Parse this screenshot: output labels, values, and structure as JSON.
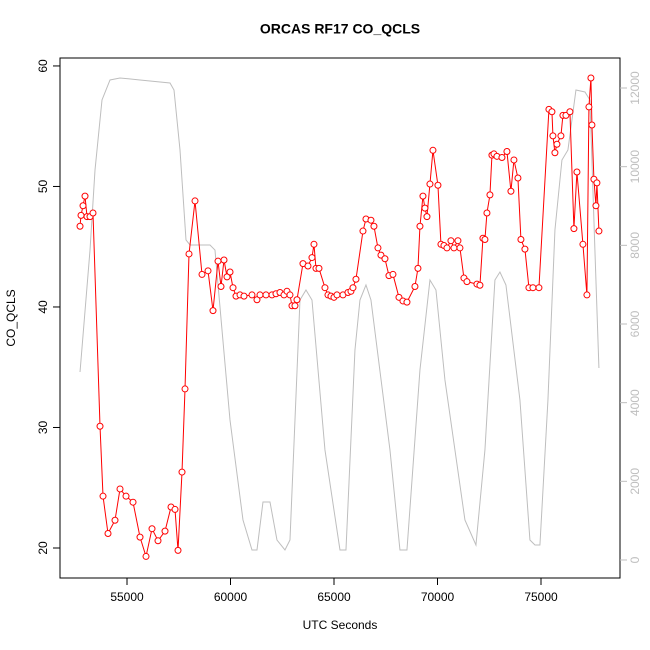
{
  "chart_data": {
    "type": "line",
    "title": "ORCAS RF17 CO_QCLS",
    "x_label": "UTC Seconds",
    "y_label": "CO_QCLS",
    "xlim": [
      51763,
      78816
    ],
    "xticks": [
      55000,
      60000,
      65000,
      70000,
      75000
    ],
    "ylim": [
      17.51,
      60.66
    ],
    "yticks": [
      20,
      30,
      40,
      50,
      60
    ],
    "y2lim": [
      -458,
      12763
    ],
    "y2ticks": [
      0,
      2000,
      4000,
      6000,
      8000,
      10000,
      12000
    ],
    "series": [
      {
        "color": "#ff0000",
        "markers": true,
        "x": [
          52730,
          52778,
          52875,
          52971,
          53068,
          53213,
          53357,
          53696,
          53841,
          54082,
          54420,
          54662,
          54952,
          55290,
          55628,
          55918,
          56208,
          56497,
          56836,
          57126,
          57319,
          57464,
          57657,
          57802,
          57995,
          58285,
          58623,
          58913,
          59154,
          59396,
          59541,
          59686,
          59831,
          59976,
          60121,
          60266,
          60459,
          60652,
          61038,
          61279,
          61424,
          61714,
          62004,
          62197,
          62390,
          62583,
          62728,
          62873,
          62970,
          63114,
          63211,
          63501,
          63742,
          63936,
          64032,
          64129,
          64274,
          64563,
          64708,
          64853,
          64998,
          65143,
          65433,
          65674,
          65819,
          65916,
          66061,
          66399,
          66544,
          66785,
          66930,
          67123,
          67268,
          67461,
          67655,
          67848,
          68138,
          68331,
          68524,
          68910,
          69055,
          69152,
          69297,
          69393,
          69490,
          69635,
          69780,
          70021,
          70166,
          70311,
          70456,
          70649,
          70794,
          70987,
          71084,
          71277,
          71422,
          71905,
          72050,
          72195,
          72291,
          72388,
          72533,
          72630,
          72726,
          72871,
          73113,
          73354,
          73547,
          73692,
          73885,
          74030,
          74223,
          74417,
          74610,
          74900,
          75383,
          75528,
          75576,
          75672,
          75769,
          75962,
          76059,
          76204,
          76397,
          76590,
          76735,
          77025,
          77218,
          77315,
          77411,
          77460,
          77556,
          77653,
          77701,
          77798
        ],
        "values": [
          46.7,
          47.6,
          48.4,
          49.2,
          47.5,
          47.5,
          47.8,
          30.1,
          24.3,
          21.2,
          22.3,
          24.9,
          24.3,
          23.8,
          20.9,
          19.3,
          21.6,
          20.6,
          21.4,
          23.4,
          23.2,
          19.8,
          26.3,
          33.2,
          44.4,
          48.8,
          42.7,
          43.0,
          39.7,
          43.8,
          41.7,
          43.9,
          42.5,
          42.9,
          41.6,
          40.9,
          41.0,
          40.9,
          41.0,
          40.6,
          41.0,
          41.0,
          41.0,
          41.1,
          41.2,
          41.0,
          41.3,
          41.0,
          40.1,
          40.1,
          40.6,
          43.6,
          43.4,
          44.1,
          45.2,
          43.2,
          43.2,
          41.6,
          41.0,
          40.9,
          40.8,
          41.0,
          41.0,
          41.2,
          41.3,
          41.6,
          42.3,
          46.3,
          47.3,
          47.2,
          46.7,
          44.9,
          44.3,
          44.0,
          42.6,
          42.7,
          40.8,
          40.5,
          40.4,
          41.7,
          43.2,
          46.7,
          49.2,
          48.2,
          47.5,
          50.2,
          53.0,
          50.1,
          45.2,
          45.1,
          44.9,
          45.5,
          44.9,
          45.5,
          44.9,
          42.4,
          42.1,
          41.9,
          41.8,
          45.7,
          45.6,
          47.8,
          49.3,
          52.6,
          52.7,
          52.5,
          52.4,
          52.9,
          49.6,
          52.2,
          50.7,
          45.6,
          44.8,
          41.6,
          41.6,
          41.6,
          56.4,
          56.2,
          54.2,
          52.8,
          53.5,
          54.2,
          55.9,
          55.9,
          56.2,
          46.5,
          51.2,
          45.2,
          41.0,
          56.6,
          59.0,
          55.1,
          50.6,
          48.4,
          50.3,
          46.3
        ]
      },
      {
        "color": "#bebebe",
        "axis": "y2",
        "markers": false,
        "x": [
          52730,
          53213,
          53454,
          53792,
          54179,
          54662,
          55628,
          57077,
          57270,
          57560,
          57850,
          58043,
          59009,
          59250,
          59589,
          59975,
          60603,
          61038,
          61279,
          61569,
          61907,
          62245,
          62631,
          62873,
          63356,
          63646,
          63936,
          64563,
          65288,
          65578,
          66012,
          66254,
          66544,
          66785,
          67703,
          68186,
          68524,
          69152,
          69635,
          69925,
          70359,
          71325,
          71857,
          72291,
          72774,
          73016,
          73306,
          73982,
          74465,
          74707,
          74948,
          75335,
          75673,
          76011,
          76301,
          76688,
          77123,
          77363,
          77604,
          77798
        ],
        "values": [
          4780,
          7880,
          9915,
          11696,
          12204,
          12255,
          12204,
          12128,
          11950,
          10425,
          8136,
          8009,
          8009,
          7880,
          5848,
          3560,
          1017,
          254,
          254,
          1475,
          1475,
          508,
          254,
          508,
          6610,
          6865,
          6610,
          2797,
          254,
          254,
          5339,
          6610,
          6992,
          6610,
          2797,
          254,
          254,
          4831,
          7119,
          6865,
          4577,
          1017,
          381,
          2797,
          7119,
          7322,
          6992,
          4068,
          508,
          381,
          381,
          4068,
          8390,
          10170,
          10425,
          11950,
          11899,
          11696,
          7880,
          4882
        ]
      }
    ]
  }
}
